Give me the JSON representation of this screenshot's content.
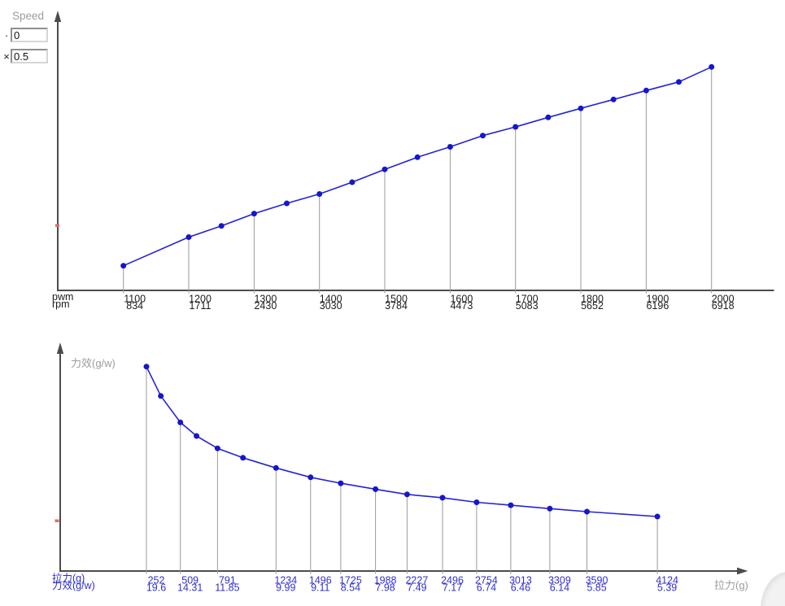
{
  "speed_panel": {
    "title": "Speed",
    "offset_prefix": "·",
    "offset_value": "0",
    "scale_prefix": "×",
    "scale_value": "0.5"
  },
  "colors": {
    "accent_blue": "#2323d7",
    "point_blue": "#1616cb",
    "label_blue": "#3030cf",
    "label_black": "#1c1c1c",
    "axis_gray": "#4c4c4c",
    "dropline_gray": "#9a9a9a",
    "title_gray": "#9c9c9c",
    "marker_red": "#e26b6b"
  },
  "chart_data": [
    {
      "id": "speed-curve",
      "type": "line",
      "title": "",
      "ylabel": "Speed",
      "xlabel": "",
      "x_row_headers": [
        "pwm",
        "rpm"
      ],
      "x_range": [
        1100,
        2000
      ],
      "grid": false,
      "legend": false,
      "points": [
        {
          "x": 1100,
          "y": 834,
          "labeled": true
        },
        {
          "x": 1200,
          "y": 1711,
          "labeled": true
        },
        {
          "x": 1250,
          "y": 2054,
          "labeled": false
        },
        {
          "x": 1300,
          "y": 2430,
          "labeled": true
        },
        {
          "x": 1350,
          "y": 2743,
          "labeled": false
        },
        {
          "x": 1400,
          "y": 3030,
          "labeled": true
        },
        {
          "x": 1450,
          "y": 3390,
          "labeled": false
        },
        {
          "x": 1500,
          "y": 3784,
          "labeled": true
        },
        {
          "x": 1550,
          "y": 4155,
          "labeled": false
        },
        {
          "x": 1600,
          "y": 4473,
          "labeled": true
        },
        {
          "x": 1650,
          "y": 4817,
          "labeled": false
        },
        {
          "x": 1700,
          "y": 5083,
          "labeled": true
        },
        {
          "x": 1750,
          "y": 5374,
          "labeled": false
        },
        {
          "x": 1800,
          "y": 5652,
          "labeled": true
        },
        {
          "x": 1850,
          "y": 5922,
          "labeled": false
        },
        {
          "x": 1900,
          "y": 6196,
          "labeled": true
        },
        {
          "x": 1950,
          "y": 6459,
          "labeled": false
        },
        {
          "x": 2000,
          "y": 6918,
          "labeled": true
        }
      ]
    },
    {
      "id": "efficiency-curve",
      "type": "line",
      "title": "",
      "xlabel": "拉力(g)",
      "ylabel": "力效(g/w)",
      "x_row_headers": [
        "拉力(g)",
        "力效(g/w)"
      ],
      "x_range": [
        252,
        4124
      ],
      "grid": false,
      "legend": false,
      "points": [
        {
          "x": 252,
          "y": 19.6,
          "labeled": true
        },
        {
          "x": 361,
          "y": 16.82,
          "labeled": false
        },
        {
          "x": 509,
          "y": 14.31,
          "labeled": true
        },
        {
          "x": 632,
          "y": 13.02,
          "labeled": false
        },
        {
          "x": 791,
          "y": 11.85,
          "labeled": true
        },
        {
          "x": 984,
          "y": 10.96,
          "labeled": false
        },
        {
          "x": 1234,
          "y": 9.99,
          "labeled": true
        },
        {
          "x": 1496,
          "y": 9.11,
          "labeled": true
        },
        {
          "x": 1725,
          "y": 8.54,
          "labeled": true
        },
        {
          "x": 1988,
          "y": 7.98,
          "labeled": true
        },
        {
          "x": 2227,
          "y": 7.49,
          "labeled": true
        },
        {
          "x": 2496,
          "y": 7.17,
          "labeled": true
        },
        {
          "x": 2754,
          "y": 6.74,
          "labeled": true
        },
        {
          "x": 3013,
          "y": 6.46,
          "labeled": true
        },
        {
          "x": 3309,
          "y": 6.14,
          "labeled": true
        },
        {
          "x": 3590,
          "y": 5.85,
          "labeled": true
        },
        {
          "x": 4124,
          "y": 5.39,
          "labeled": true
        }
      ]
    }
  ]
}
